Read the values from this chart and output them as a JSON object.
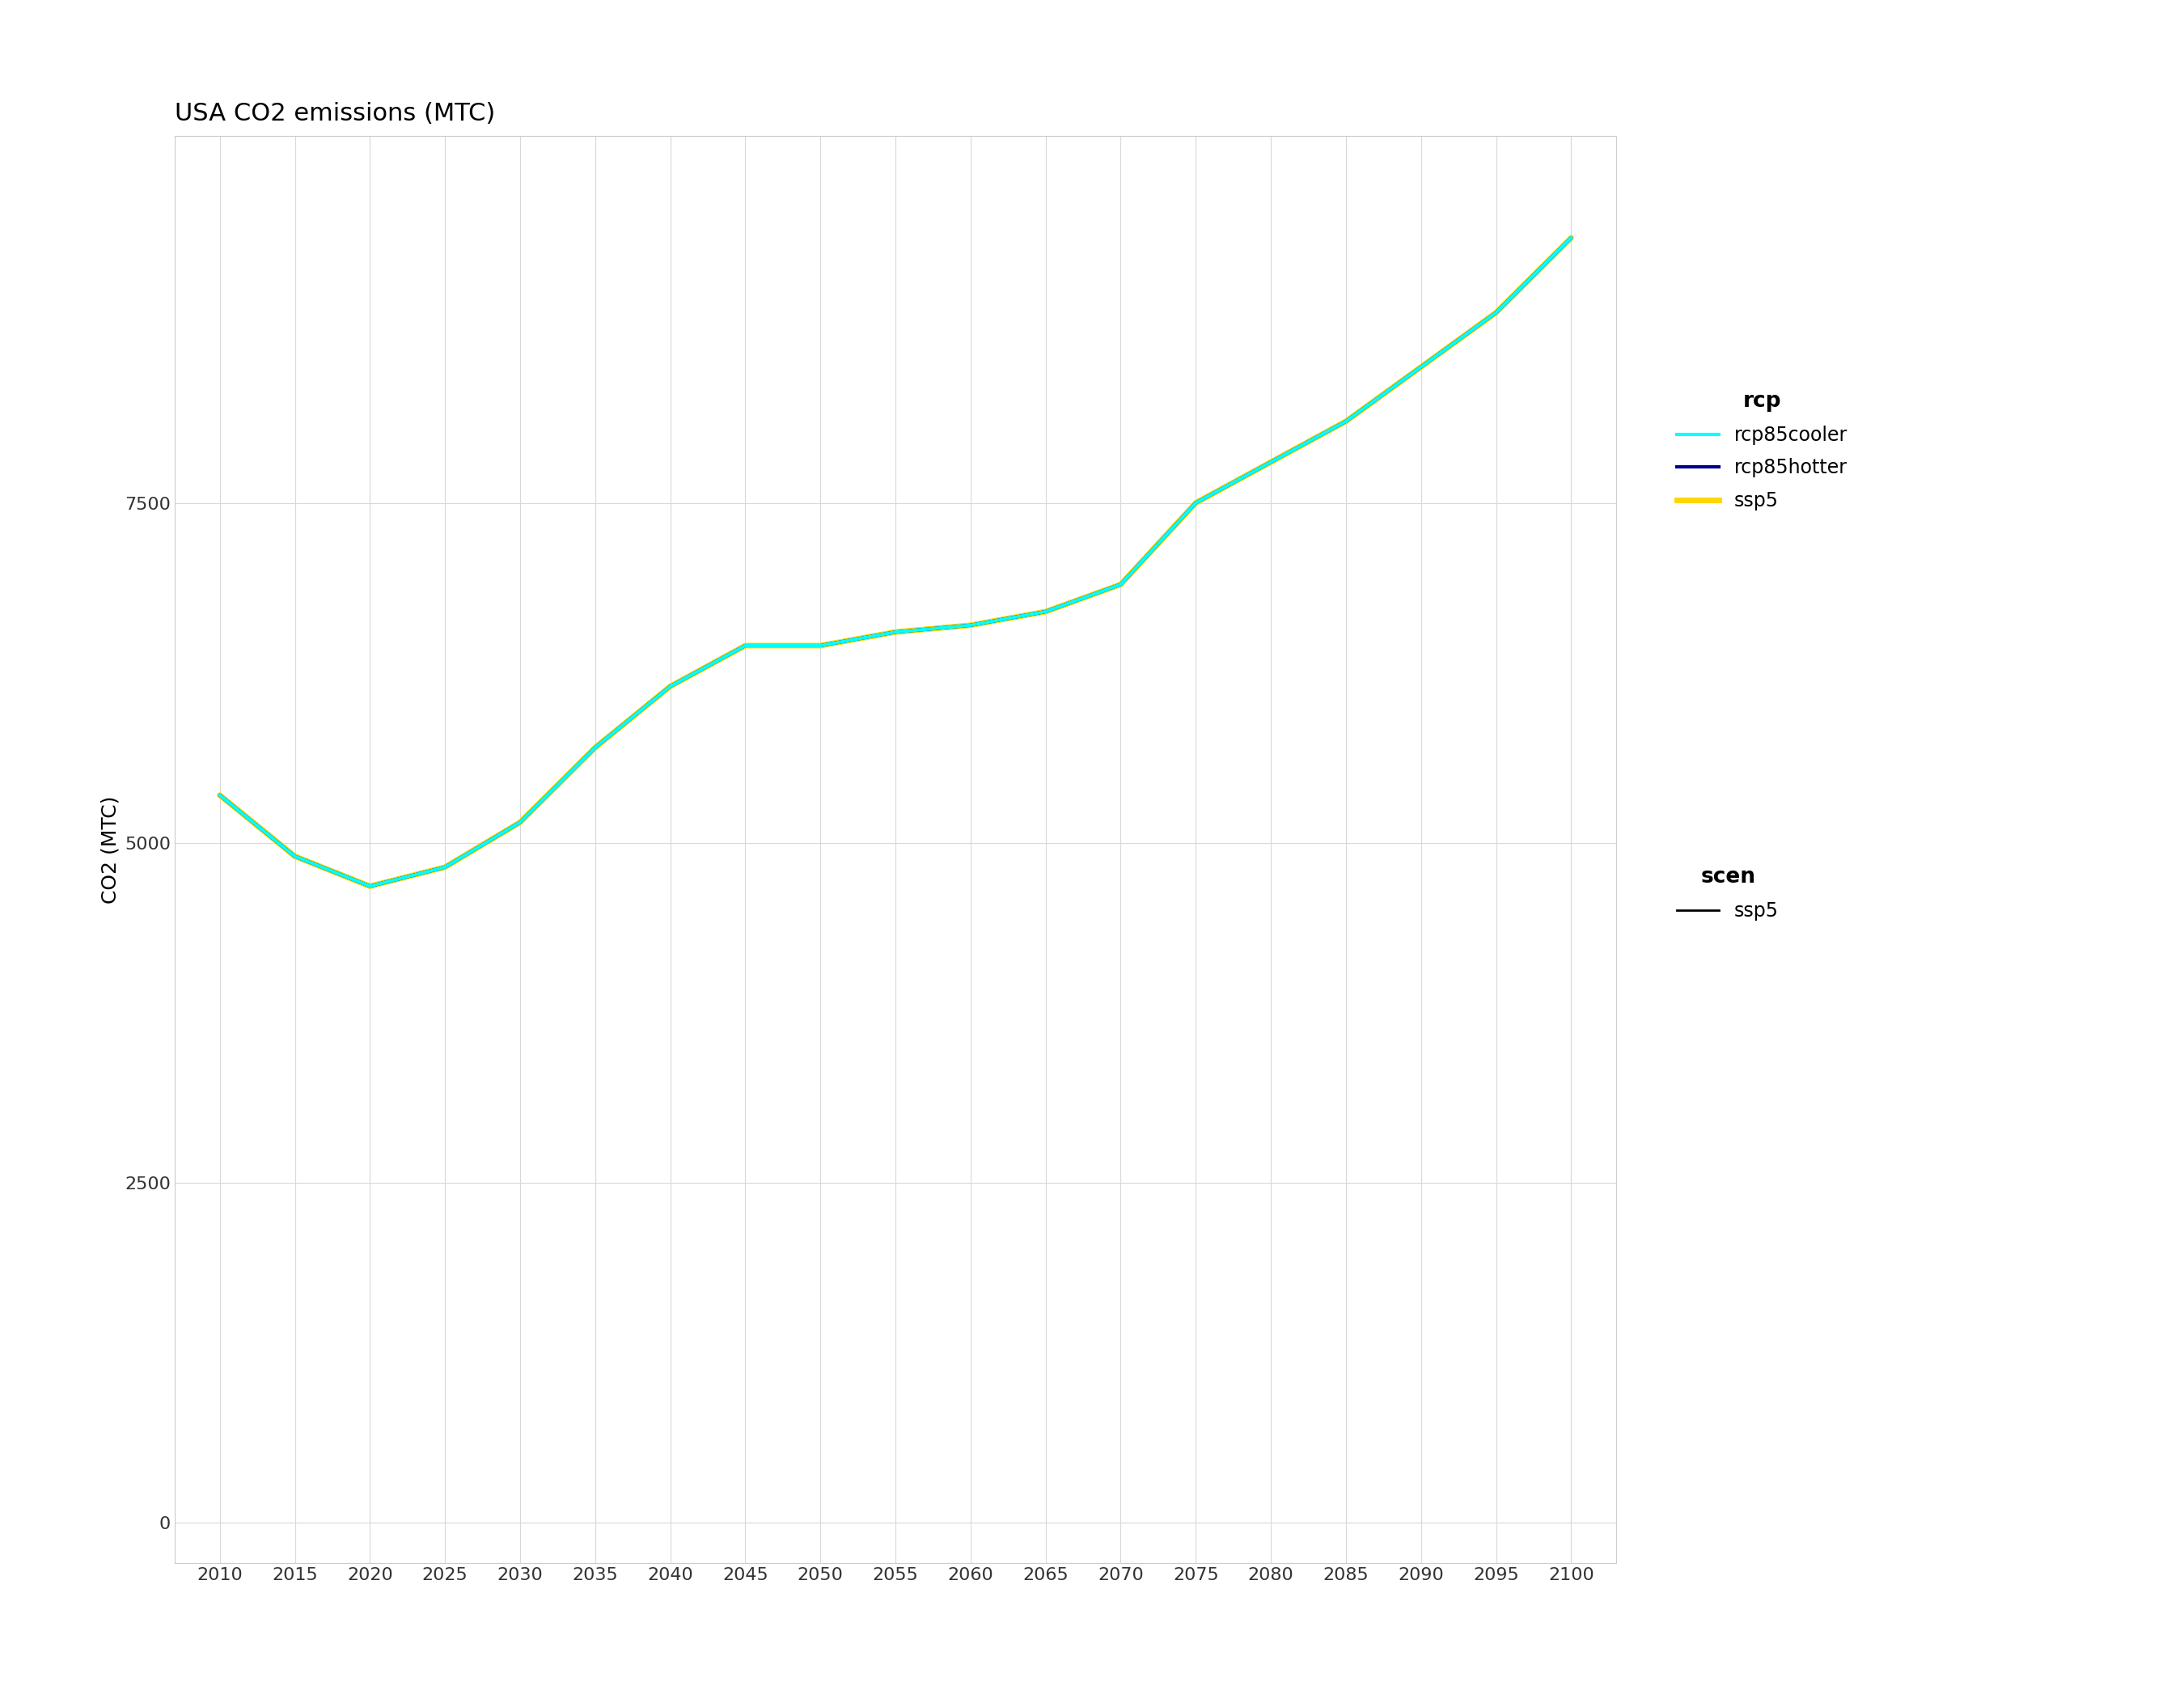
{
  "title": "USA CO2 emissions (MTC)",
  "ylabel": "CO2 (MTC)",
  "xlabel": "",
  "background_color": "#ffffff",
  "plot_bg_color": "#ffffff",
  "grid_color": "#d8d8d8",
  "years": [
    2010,
    2015,
    2020,
    2025,
    2030,
    2035,
    2040,
    2045,
    2050,
    2055,
    2060,
    2065,
    2070,
    2075,
    2080,
    2085,
    2090,
    2095,
    2100
  ],
  "series": {
    "rcp85cooler": {
      "color": "#00ffff",
      "linewidth": 3.0,
      "zorder": 4,
      "values": [
        5350,
        4900,
        4680,
        4820,
        5150,
        5700,
        6150,
        6450,
        6450,
        6550,
        6600,
        6700,
        6900,
        7500,
        7800,
        8100,
        8500,
        8900,
        9450
      ]
    },
    "rcp85hotter": {
      "color": "#00008b",
      "linewidth": 3.0,
      "zorder": 3,
      "values": [
        5350,
        4900,
        4680,
        4820,
        5150,
        5700,
        6150,
        6450,
        6450,
        6550,
        6600,
        6700,
        6900,
        7500,
        7800,
        8100,
        8500,
        8900,
        9450
      ]
    },
    "ssp5": {
      "color": "#ffd700",
      "linewidth": 5.0,
      "zorder": 2,
      "values": [
        5350,
        4900,
        4680,
        4820,
        5150,
        5700,
        6150,
        6450,
        6450,
        6550,
        6600,
        6700,
        6900,
        7500,
        7800,
        8100,
        8500,
        8900,
        9450
      ]
    }
  },
  "scen_legend": {
    "ssp5": {
      "color": "#000000",
      "linewidth": 2.0
    }
  },
  "ylim": [
    -300,
    10200
  ],
  "yticks": [
    0,
    2500,
    5000,
    7500
  ],
  "xlim": [
    2007,
    2103
  ],
  "xticks": [
    2010,
    2015,
    2020,
    2025,
    2030,
    2035,
    2040,
    2045,
    2050,
    2055,
    2060,
    2065,
    2070,
    2075,
    2080,
    2085,
    2090,
    2095,
    2100
  ],
  "title_fontsize": 22,
  "axis_label_fontsize": 18,
  "tick_fontsize": 16,
  "legend_fontsize": 17,
  "legend_title_fontsize": 19
}
